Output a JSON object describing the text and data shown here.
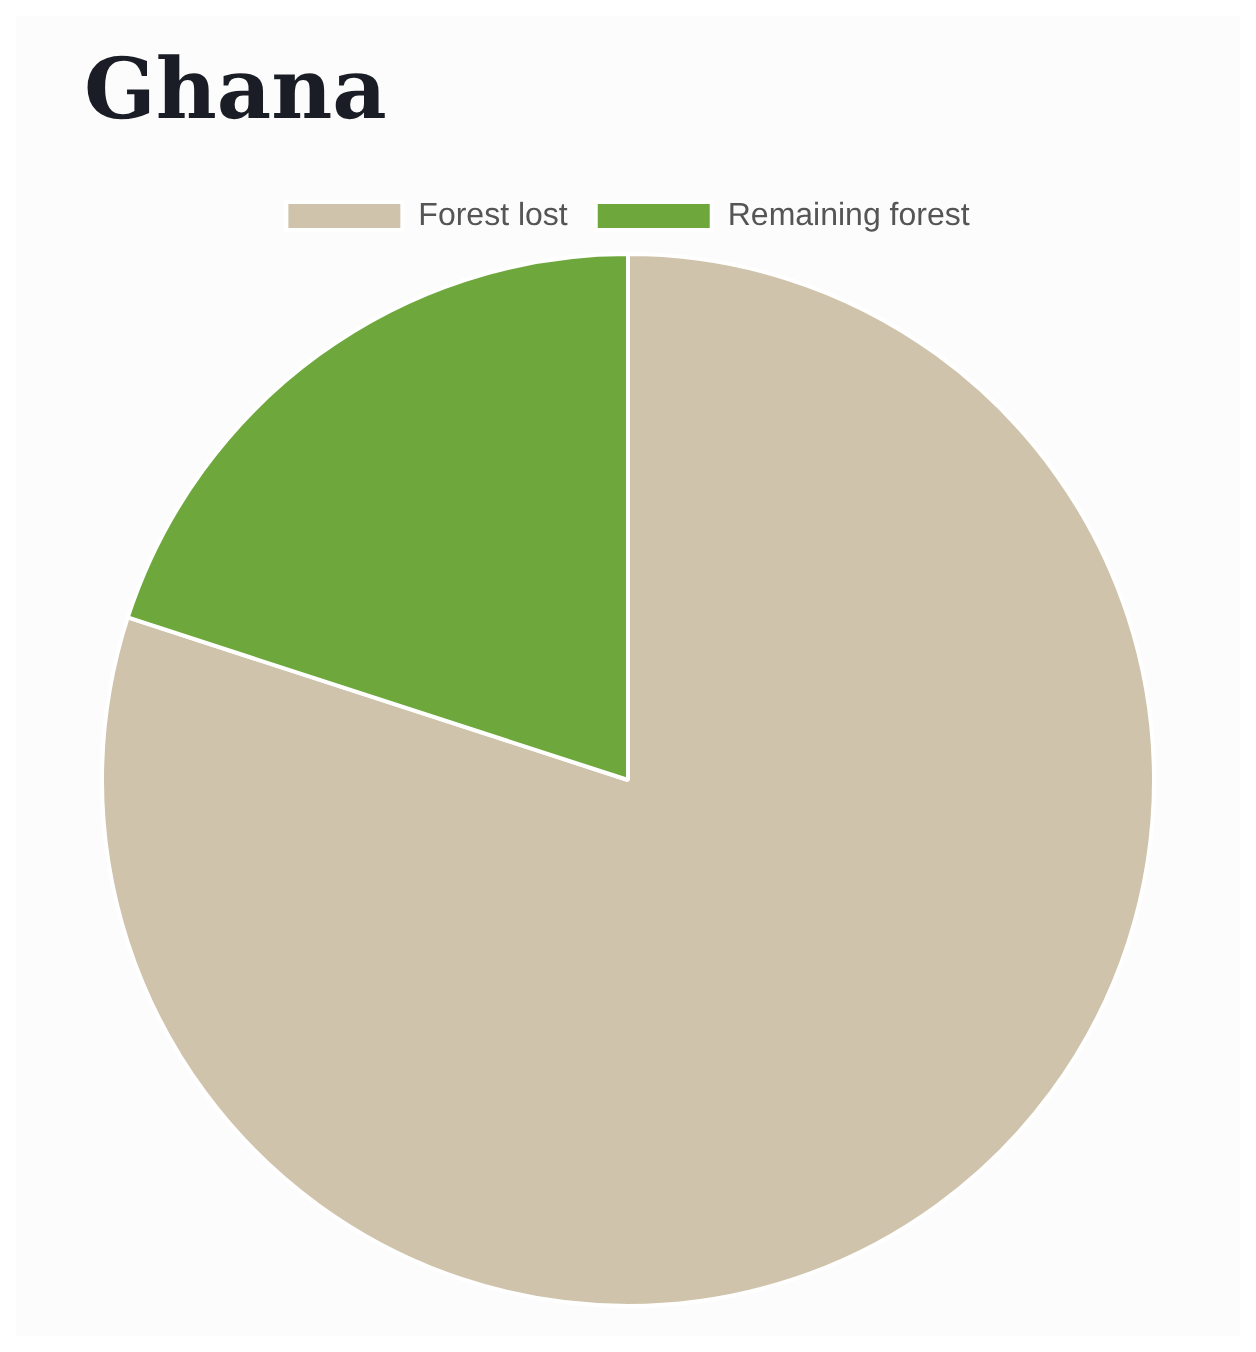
{
  "chart_data": {
    "type": "pie",
    "title": "Ghana",
    "categories": [
      "Forest lost",
      "Remaining forest"
    ],
    "values": [
      80,
      20
    ],
    "colors": [
      "#d0c3ab",
      "#6ea83c"
    ],
    "legend": "top"
  }
}
